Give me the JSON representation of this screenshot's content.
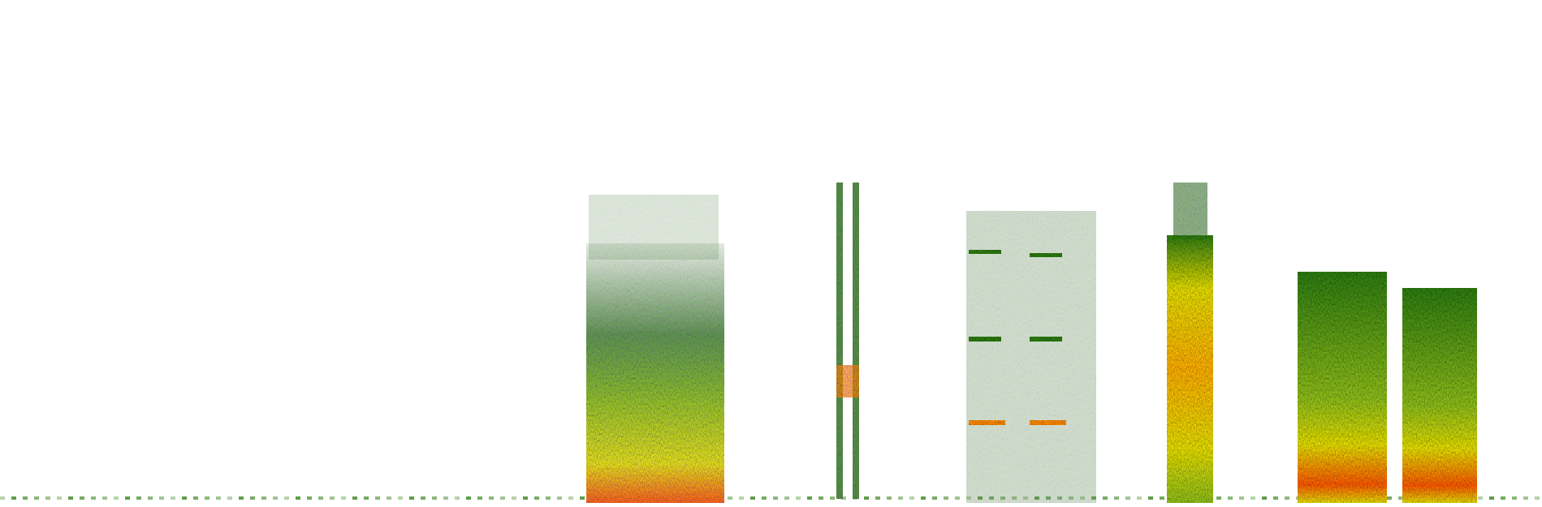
{
  "image": {
    "kind": "spectrogram",
    "background": "#ffffff",
    "palette": {
      "low": "#2e7d12",
      "mid": "#8fbf1a",
      "high": "#e6df00",
      "peak": "#ff5a00"
    }
  }
}
